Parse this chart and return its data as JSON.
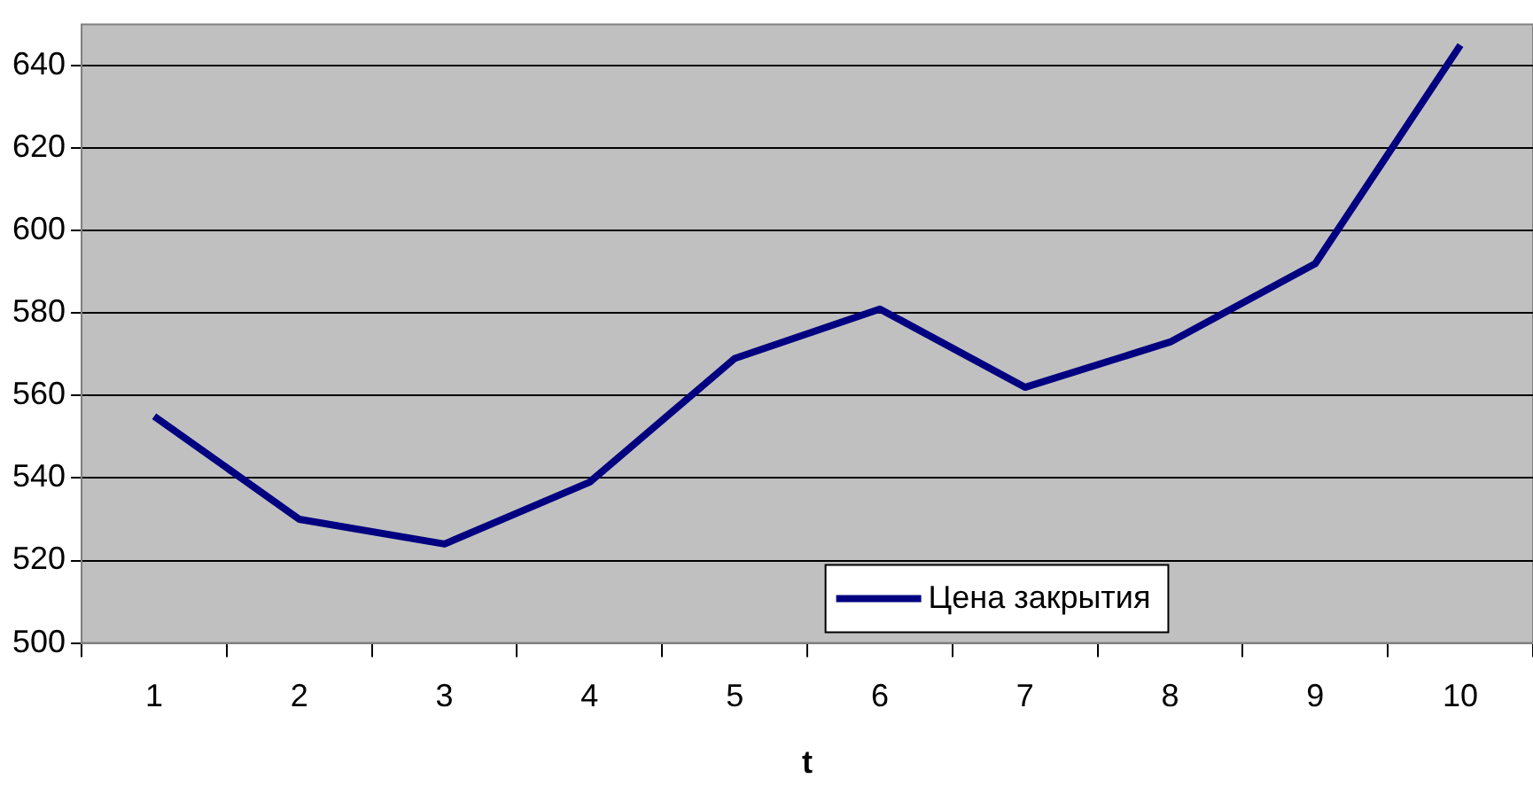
{
  "chart_data": {
    "type": "line",
    "xlabel": "t",
    "categories": [
      "1",
      "2",
      "3",
      "4",
      "5",
      "6",
      "7",
      "8",
      "9",
      "10"
    ],
    "series": [
      {
        "name": "Цена закрытия",
        "color": "#000080",
        "values": [
          555,
          530,
          524,
          539,
          569,
          581,
          562,
          573,
          592,
          645
        ]
      }
    ],
    "ylim": [
      500,
      650
    ],
    "yticks": [
      500,
      520,
      540,
      560,
      580,
      600,
      620,
      640
    ],
    "grid": "y",
    "legend": "bottom",
    "marker": "none",
    "line_style": "solid"
  }
}
